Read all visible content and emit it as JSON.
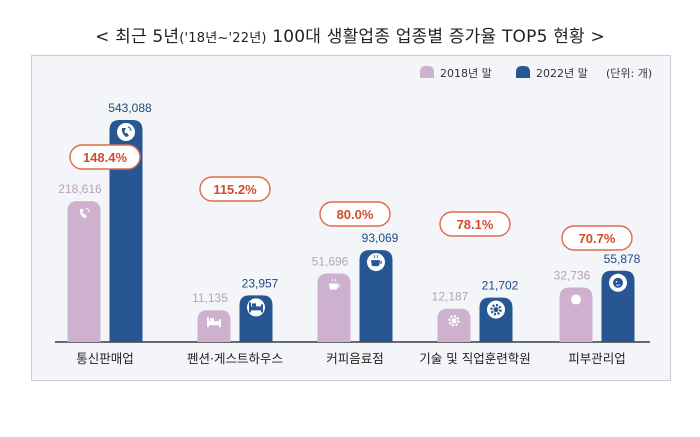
{
  "title": {
    "main_prefix": "< 최근 5년",
    "main_small": "('18년~'22년)",
    "main_suffix": " 100대 생활업종 업종별 증가율 TOP5 현황 >"
  },
  "legend": [
    {
      "label": "2018년 말",
      "color": "#cdb1cf"
    },
    {
      "label": "2022년 말",
      "color": "#285693"
    }
  ],
  "unit_note": "(단위: 개)",
  "chart_data": {
    "type": "bar",
    "categories": [
      "통신판매업",
      "펜션·게스트하우스",
      "커피음료점",
      "기술 및 직업훈련학원",
      "피부관리업"
    ],
    "series": [
      {
        "name": "2018년 말",
        "values": [
          218616,
          11135,
          51696,
          12187,
          32736
        ],
        "labels": [
          "218,616",
          "11,135",
          "51,696",
          "12,187",
          "32,736"
        ]
      },
      {
        "name": "2022년 말",
        "values": [
          543088,
          23957,
          93069,
          21702,
          55878
        ],
        "labels": [
          "543,088",
          "23,957",
          "93,069",
          "21,702",
          "55,878"
        ]
      }
    ],
    "growth_rates": [
      "148.4%",
      "115.2%",
      "80.0%",
      "78.1%",
      "70.7%"
    ],
    "icons": [
      "phone-icon",
      "bed-icon",
      "coffee-cup-icon",
      "gear-icon",
      "face-care-icon"
    ],
    "colors": {
      "s2018": "#cdb1cf",
      "s2022": "#285693",
      "growth_border": "#e06a4e",
      "growth_text": "#d24a2c",
      "label_2018": "#b9a0bd",
      "label_2022": "#1f4a86"
    }
  }
}
